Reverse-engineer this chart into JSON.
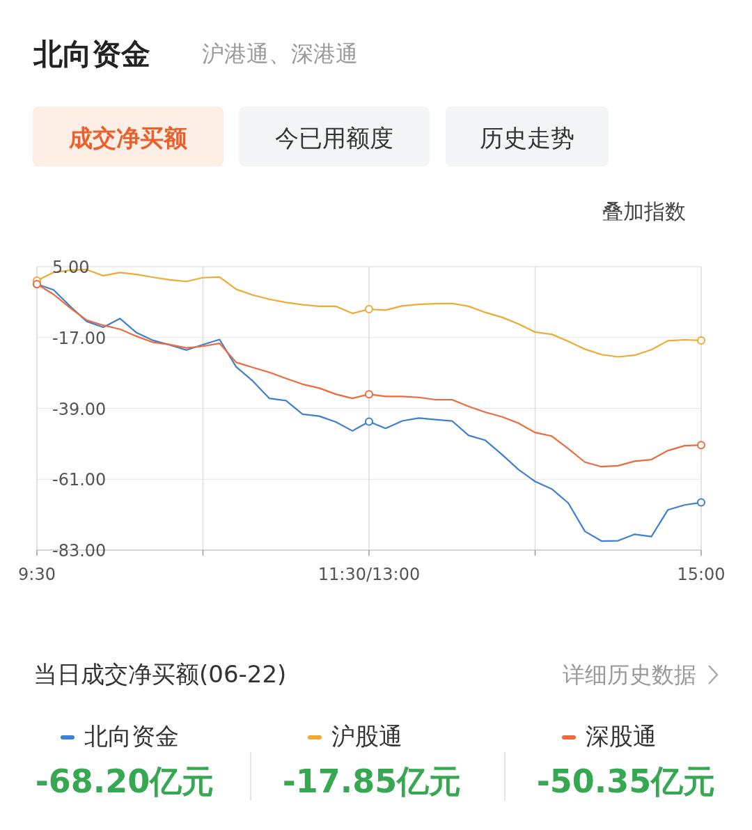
{
  "chart_data": {
    "type": "line",
    "title": "北向资金",
    "subtitle": "沪港通、深港通",
    "annotations": [
      "成交净买额",
      "今已用额度",
      "历史走势",
      "叠加指数",
      "当日成交净买额(06-22)",
      "详细历史数据",
      "-68.20亿元",
      "-17.85亿元",
      "-50.35亿元"
    ],
    "categories": [
      "9:30",
      null,
      null,
      null,
      null,
      null,
      null,
      null,
      null,
      null,
      null,
      null,
      null,
      null,
      null,
      null,
      null,
      null,
      null,
      null,
      "11:30/13:00",
      null,
      null,
      null,
      null,
      null,
      null,
      null,
      null,
      null,
      null,
      null,
      null,
      null,
      null,
      null,
      null,
      null,
      null,
      null,
      "15:00"
    ],
    "ylim": [
      -83,
      5
    ],
    "yticks": [
      {
        "value": 5,
        "label": "5.00"
      },
      {
        "value": -17,
        "label": "-17.00"
      },
      {
        "value": -39,
        "label": "-39.00"
      },
      {
        "value": -61,
        "label": "-61.00"
      },
      {
        "value": -83,
        "label": "-83.00"
      }
    ],
    "grid": true,
    "legend": "bottom",
    "line_style": "solid",
    "series": [
      {
        "name": "北向资金",
        "color": "#3d7fd0",
        "values": [
          -0.4,
          -2.2,
          -7.3,
          -12.0,
          -13.8,
          -11.1,
          -15.5,
          -17.9,
          -19.3,
          -20.9,
          -19.2,
          -17.6,
          -26.1,
          -30.5,
          -35.9,
          -36.6,
          -40.8,
          -41.4,
          -43.2,
          -46.0,
          -43.1,
          -45.2,
          -42.9,
          -42.0,
          -42.5,
          -42.9,
          -47.4,
          -48.9,
          -53.3,
          -58.0,
          -61.7,
          -64.0,
          -68.4,
          -77.2,
          -80.2,
          -80.1,
          -78.1,
          -78.8,
          -70.5,
          -69.0,
          -68.2
        ]
      },
      {
        "name": "沪股通",
        "color": "#eeaa33",
        "values": [
          0.7,
          3.2,
          3.9,
          4.1,
          2.2,
          3.2,
          2.6,
          1.7,
          0.9,
          0.4,
          1.6,
          1.8,
          -2.0,
          -3.8,
          -5.1,
          -6.1,
          -6.8,
          -7.3,
          -7.3,
          -9.5,
          -8.2,
          -8.5,
          -7.2,
          -6.7,
          -6.5,
          -6.4,
          -7.3,
          -9.2,
          -10.7,
          -12.8,
          -15.3,
          -16.0,
          -18.2,
          -20.6,
          -22.3,
          -23.0,
          -22.5,
          -20.8,
          -18.0,
          -17.7,
          -17.9
        ]
      },
      {
        "name": "深股通",
        "color": "#ee6a3a",
        "values": [
          -0.4,
          -3.6,
          -7.8,
          -11.6,
          -13.2,
          -14.4,
          -16.6,
          -18.5,
          -19.2,
          -20.2,
          -19.7,
          -18.8,
          -24.7,
          -26.3,
          -27.8,
          -29.7,
          -31.5,
          -32.7,
          -34.6,
          -35.9,
          -34.6,
          -35.3,
          -35.3,
          -35.6,
          -36.3,
          -36.3,
          -38.4,
          -40.2,
          -41.6,
          -43.6,
          -46.5,
          -47.6,
          -51.5,
          -55.7,
          -57.1,
          -56.8,
          -55.4,
          -54.9,
          -52.1,
          -50.6,
          -50.4
        ]
      }
    ]
  }
}
